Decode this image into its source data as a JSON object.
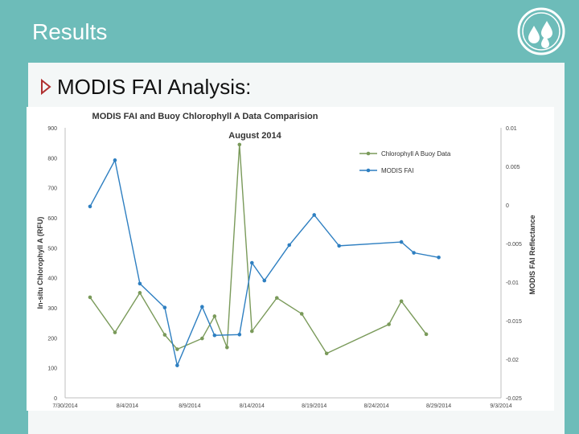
{
  "slide": {
    "title": "Results",
    "bullet": "MODIS FAI Analysis:"
  },
  "colors": {
    "background": "#6dbcb9",
    "content_bg": "#f4f7f7",
    "chlorophyll_series": "#7a9a5a",
    "modis_series": "#2e7fc1"
  },
  "icons": {
    "logo": "water-drops-logo-icon",
    "bullet": "triangle-bullet-icon"
  },
  "chart_data": {
    "type": "line",
    "title": "MODIS FAI and Buoy Chlorophyll A Data Comparision",
    "subtitle": "August 2014",
    "xlabel": "",
    "ylabel": "In-situ Chlorophyll A (RFU)",
    "y2label": "MODIS FAI Reflectance",
    "x_ticks": [
      "7/30/2014",
      "8/4/2014",
      "8/9/2014",
      "8/14/2014",
      "8/19/2014",
      "8/24/2014",
      "8/29/2014",
      "9/3/2014"
    ],
    "y_ticks": [
      "0",
      "100",
      "200",
      "300",
      "400",
      "500",
      "600",
      "700",
      "800",
      "900"
    ],
    "y2_ticks": [
      "0.01",
      "0.005",
      "0",
      "-0.005",
      "-0.01",
      "-0.015",
      "-0.02",
      "-0.025"
    ],
    "ylim": [
      0,
      900
    ],
    "y2lim": [
      -0.025,
      0.01
    ],
    "xlim": [
      "2014-07-30",
      "2014-09-03"
    ],
    "grid": false,
    "legend_position": "right",
    "series": [
      {
        "name": "Chlorophyll A Buoy Data",
        "axis": "left",
        "x": [
          "2014-08-01",
          "2014-08-03",
          "2014-08-05",
          "2014-08-07",
          "2014-08-08",
          "2014-08-10",
          "2014-08-11",
          "2014-08-12",
          "2014-08-13",
          "2014-08-14",
          "2014-08-16",
          "2014-08-18",
          "2014-08-20",
          "2014-08-25",
          "2014-08-26",
          "2014-08-28"
        ],
        "values": [
          335,
          218,
          350,
          210,
          162,
          198,
          272,
          168,
          844,
          222,
          333,
          280,
          148,
          245,
          322,
          212
        ]
      },
      {
        "name": "MODIS FAI",
        "axis": "right",
        "x": [
          "2014-08-01",
          "2014-08-03",
          "2014-08-05",
          "2014-08-07",
          "2014-08-08",
          "2014-08-10",
          "2014-08-11",
          "2014-08-13",
          "2014-08-14",
          "2014-08-15",
          "2014-08-17",
          "2014-08-19",
          "2014-08-21",
          "2014-08-26",
          "2014-08-27",
          "2014-08-29"
        ],
        "values": [
          -0.0002,
          0.0058,
          -0.0102,
          -0.0133,
          -0.0208,
          -0.0132,
          -0.0169,
          -0.0168,
          -0.0075,
          -0.0098,
          -0.0052,
          -0.0013,
          -0.0053,
          -0.0048,
          -0.0062,
          -0.0068
        ]
      }
    ]
  }
}
